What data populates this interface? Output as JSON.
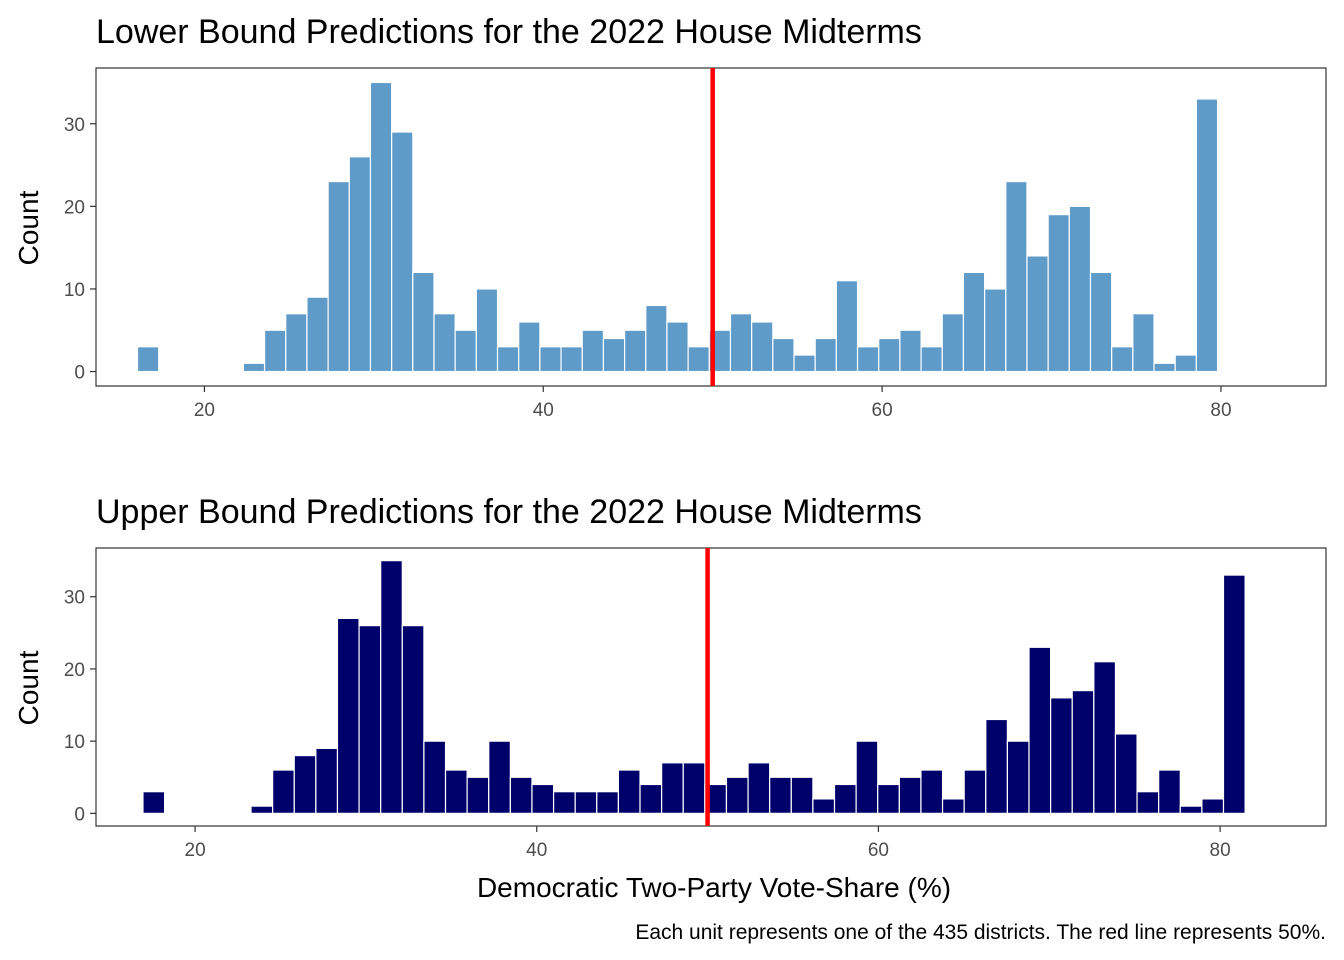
{
  "colors": {
    "lower_fill": "#5e9bc9",
    "upper_fill": "#00006b",
    "reference_line": "#ff0000"
  },
  "xlabel": "Democratic Two-Party Vote-Share (%)",
  "caption": "Each unit represents one of the 435 districts. The red line represents 50%.",
  "chart_data": [
    {
      "type": "bar",
      "title": "Lower Bound Predictions for the 2022 House Midterms",
      "xlabel": "",
      "ylabel": "Count",
      "xlim": [
        13.6,
        86.2
      ],
      "ylim": [
        -1.75,
        36.75
      ],
      "x_ticks": [
        20,
        40,
        60,
        80
      ],
      "y_ticks": [
        0,
        10,
        20,
        30
      ],
      "reference_line_x": 50,
      "grid": false,
      "fill_key": "lower_fill",
      "bin_start": 16.05,
      "bin_width": 1.25,
      "values": [
        3,
        0,
        0,
        0,
        0,
        1,
        5,
        7,
        9,
        23,
        26,
        35,
        29,
        12,
        7,
        5,
        10,
        3,
        6,
        3,
        3,
        5,
        4,
        5,
        8,
        6,
        3,
        5,
        7,
        6,
        4,
        2,
        4,
        11,
        3,
        4,
        5,
        3,
        7,
        12,
        10,
        23,
        14,
        19,
        20,
        12,
        3,
        7,
        1,
        2,
        33
      ]
    },
    {
      "type": "bar",
      "title": "Upper Bound Predictions for the 2022 House Midterms",
      "xlabel": "Democratic Two-Party Vote-Share (%)",
      "ylabel": "Count",
      "xlim": [
        14.2,
        86.2
      ],
      "ylim": [
        -1.75,
        36.75
      ],
      "x_ticks": [
        20,
        40,
        60,
        80
      ],
      "y_ticks": [
        0,
        10,
        20,
        30
      ],
      "reference_line_x": 50,
      "grid": false,
      "fill_key": "upper_fill",
      "bin_start": 16.95,
      "bin_width": 1.265,
      "values": [
        3,
        0,
        0,
        0,
        0,
        1,
        6,
        8,
        9,
        27,
        26,
        35,
        26,
        10,
        6,
        5,
        10,
        5,
        4,
        3,
        3,
        3,
        6,
        4,
        7,
        7,
        4,
        5,
        7,
        5,
        5,
        2,
        4,
        10,
        4,
        5,
        6,
        2,
        6,
        13,
        10,
        23,
        16,
        17,
        21,
        11,
        3,
        6,
        1,
        2,
        33
      ]
    }
  ]
}
